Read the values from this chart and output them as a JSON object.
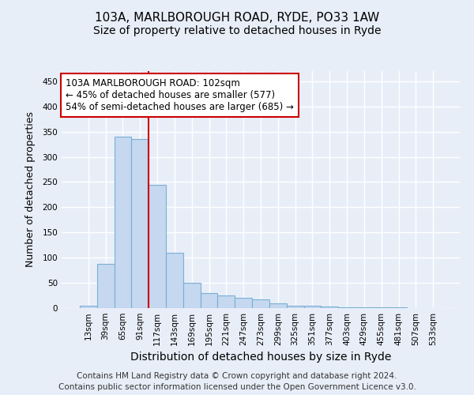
{
  "title_line1": "103A, MARLBOROUGH ROAD, RYDE, PO33 1AW",
  "title_line2": "Size of property relative to detached houses in Ryde",
  "xlabel": "Distribution of detached houses by size in Ryde",
  "ylabel": "Number of detached properties",
  "categories": [
    "13sqm",
    "39sqm",
    "65sqm",
    "91sqm",
    "117sqm",
    "143sqm",
    "169sqm",
    "195sqm",
    "221sqm",
    "247sqm",
    "273sqm",
    "299sqm",
    "325sqm",
    "351sqm",
    "377sqm",
    "403sqm",
    "429sqm",
    "455sqm",
    "481sqm",
    "507sqm",
    "533sqm"
  ],
  "values": [
    5,
    88,
    340,
    335,
    245,
    110,
    50,
    30,
    25,
    20,
    18,
    9,
    5,
    4,
    3,
    2,
    1,
    1,
    1,
    0,
    0
  ],
  "bar_color": "#c5d8ef",
  "bar_edge_color": "#7aafd4",
  "bar_linewidth": 0.8,
  "vline_color": "#cc0000",
  "annotation_text": "103A MARLBOROUGH ROAD: 102sqm\n← 45% of detached houses are smaller (577)\n54% of semi-detached houses are larger (685) →",
  "annotation_box_color": "#ffffff",
  "annotation_box_edge": "#cc0000",
  "ylim": [
    0,
    470
  ],
  "yticks": [
    0,
    50,
    100,
    150,
    200,
    250,
    300,
    350,
    400,
    450
  ],
  "footer_line1": "Contains HM Land Registry data © Crown copyright and database right 2024.",
  "footer_line2": "Contains public sector information licensed under the Open Government Licence v3.0.",
  "background_color": "#e8eef8",
  "plot_bg_color": "#e8eef8",
  "grid_color": "#ffffff",
  "title1_fontsize": 11,
  "title2_fontsize": 10,
  "xlabel_fontsize": 10,
  "ylabel_fontsize": 9,
  "tick_fontsize": 7.5,
  "annotation_fontsize": 8.5,
  "footer_fontsize": 7.5
}
